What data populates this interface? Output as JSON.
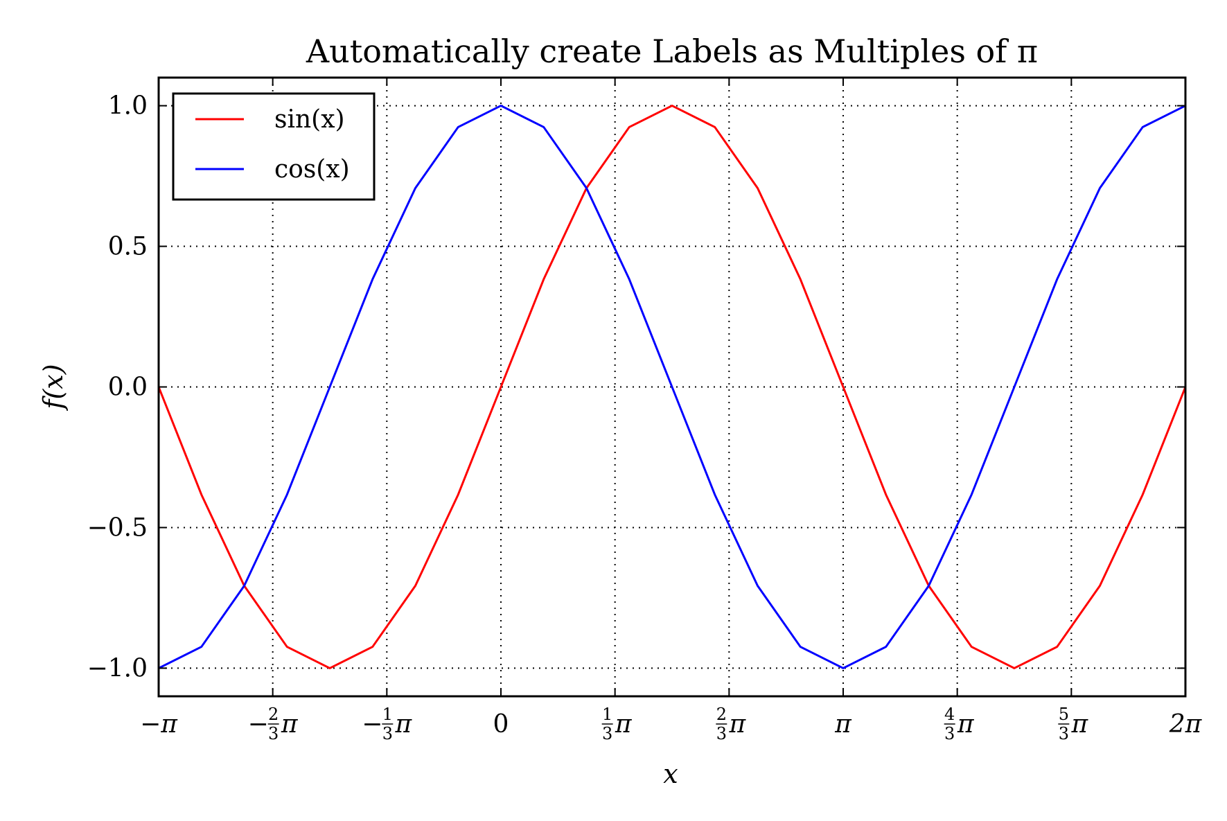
{
  "chart_data": {
    "type": "line",
    "title": "Automatically create Labels as Multiples of π",
    "xlabel": "x",
    "ylabel": "f(x)",
    "xlim": [
      -3.14159265,
      6.28318531
    ],
    "ylim": [
      -1.1,
      1.1
    ],
    "grid": true,
    "grid_style": "dotted",
    "legend_position": "top-left",
    "x_ticks": [
      {
        "value": -3.14159265,
        "sign": "−",
        "num": "",
        "den": "",
        "sym": "π"
      },
      {
        "value": -2.0943951,
        "sign": "−",
        "num": "2",
        "den": "3",
        "sym": "π"
      },
      {
        "value": -1.04719755,
        "sign": "−",
        "num": "1",
        "den": "3",
        "sym": "π"
      },
      {
        "value": 0,
        "sign": "",
        "num": "",
        "den": "",
        "sym": "0"
      },
      {
        "value": 1.04719755,
        "sign": "",
        "num": "1",
        "den": "3",
        "sym": "π"
      },
      {
        "value": 2.0943951,
        "sign": "",
        "num": "2",
        "den": "3",
        "sym": "π"
      },
      {
        "value": 3.14159265,
        "sign": "",
        "num": "",
        "den": "",
        "sym": "π"
      },
      {
        "value": 4.1887902,
        "sign": "",
        "num": "4",
        "den": "3",
        "sym": "π"
      },
      {
        "value": 5.23598776,
        "sign": "",
        "num": "5",
        "den": "3",
        "sym": "π"
      },
      {
        "value": 6.28318531,
        "sign": "",
        "num": "",
        "den": "",
        "sym": "2π"
      }
    ],
    "y_ticks": [
      {
        "value": 1.0,
        "label": "1.0"
      },
      {
        "value": 0.5,
        "label": "0.5"
      },
      {
        "value": 0.0,
        "label": "0.0"
      },
      {
        "value": -0.5,
        "label": "−0.5"
      },
      {
        "value": -1.0,
        "label": "−1.0"
      }
    ],
    "series": [
      {
        "name": "sin(x)",
        "color": "#ff0000",
        "x": [
          -3.1416,
          -2.7489,
          -2.3562,
          -1.9635,
          -1.5708,
          -1.1781,
          -0.7854,
          -0.3927,
          0.0,
          0.3927,
          0.7854,
          1.1781,
          1.5708,
          1.9635,
          2.3562,
          2.7489,
          3.1416,
          3.5343,
          3.927,
          4.3197,
          4.7124,
          5.1051,
          5.4978,
          5.8905,
          6.2832
        ],
        "y": [
          0.0,
          -0.383,
          -0.707,
          -0.924,
          -1.0,
          -0.924,
          -0.707,
          -0.383,
          0.0,
          0.383,
          0.707,
          0.924,
          1.0,
          0.924,
          0.707,
          0.383,
          0.0,
          -0.383,
          -0.707,
          -0.924,
          -1.0,
          -0.924,
          -0.707,
          -0.383,
          0.0
        ]
      },
      {
        "name": "cos(x)",
        "color": "#0000ff",
        "x": [
          -3.1416,
          -2.7489,
          -2.3562,
          -1.9635,
          -1.5708,
          -1.1781,
          -0.7854,
          -0.3927,
          0.0,
          0.3927,
          0.7854,
          1.1781,
          1.5708,
          1.9635,
          2.3562,
          2.7489,
          3.1416,
          3.5343,
          3.927,
          4.3197,
          4.7124,
          5.1051,
          5.4978,
          5.8905,
          6.2832
        ],
        "y": [
          -1.0,
          -0.924,
          -0.707,
          -0.383,
          0.0,
          0.383,
          0.707,
          0.924,
          1.0,
          0.924,
          0.707,
          0.383,
          0.0,
          -0.383,
          -0.707,
          -0.924,
          -1.0,
          -0.924,
          -0.707,
          -0.383,
          0.0,
          0.383,
          0.707,
          0.924,
          1.0
        ]
      }
    ]
  }
}
